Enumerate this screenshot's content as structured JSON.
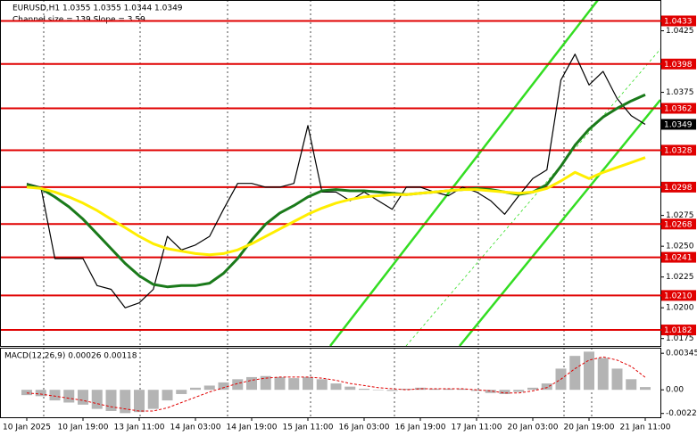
{
  "chart_data": [
    {
      "type": "line",
      "title": "EURUSD,H1 1.0355 1.0355 1.0344 1.0349",
      "subtitle": "Channel size = 139 Slope = 3.59",
      "categories": [
        "10 Jan 2025",
        null,
        null,
        null,
        "10 Jan 19:00",
        null,
        null,
        null,
        "13 Jan 11:00",
        null,
        null,
        null,
        "14 Jan 03:00",
        null,
        null,
        null,
        "14 Jan 19:00",
        null,
        null,
        null,
        "15 Jan 11:00",
        null,
        null,
        null,
        "16 Jan 03:00",
        null,
        null,
        null,
        "16 Jan 19:00",
        null,
        null,
        null,
        "17 Jan 11:00",
        null,
        null,
        null,
        "20 Jan 03:00",
        null,
        null,
        null,
        "20 Jan 19:00",
        null,
        null,
        null,
        "21 Jan 11:00"
      ],
      "series": [
        {
          "color": "#000000",
          "values": [
            1.0301,
            1.0298,
            1.024,
            1.024,
            1.024,
            1.0218,
            1.0215,
            1.02,
            1.0204,
            1.0215,
            1.0258,
            1.0247,
            1.0251,
            1.0258,
            1.028,
            1.0301,
            1.0301,
            1.0298,
            1.0298,
            1.0301,
            1.0348,
            1.0294,
            1.0294,
            1.0287,
            1.0294,
            1.0287,
            1.028,
            1.0298,
            1.0298,
            1.0294,
            1.0291,
            1.0298,
            1.0294,
            1.0287,
            1.0276,
            1.0291,
            1.0305,
            1.0312,
            1.0385,
            1.0406,
            1.0381,
            1.0392,
            1.037,
            1.0356,
            1.0349
          ]
        },
        {
          "color": "#1a7a1a",
          "values": [
            1.03,
            1.0297,
            1.029,
            1.0282,
            1.0272,
            1.026,
            1.0248,
            1.0236,
            1.0226,
            1.0219,
            1.0217,
            1.0218,
            1.0218,
            1.022,
            1.0228,
            1.024,
            1.0255,
            1.0268,
            1.0277,
            1.0283,
            1.029,
            1.0295,
            1.0296,
            1.0295,
            1.0295,
            1.0294,
            1.0293,
            1.0292,
            1.0293,
            1.0294,
            1.0295,
            1.0296,
            1.0297,
            1.0296,
            1.0294,
            1.0292,
            1.0294,
            1.03,
            1.0315,
            1.0332,
            1.0345,
            1.0355,
            1.0362,
            1.0368,
            1.0373
          ]
        },
        {
          "color": "#ffee00",
          "values": [
            1.0298,
            1.0297,
            1.0294,
            1.029,
            1.0285,
            1.0279,
            1.0272,
            1.0265,
            1.0258,
            1.0252,
            1.0248,
            1.0246,
            1.0244,
            1.0243,
            1.0244,
            1.0247,
            1.0252,
            1.0258,
            1.0264,
            1.027,
            1.0276,
            1.0281,
            1.0285,
            1.0288,
            1.029,
            1.0291,
            1.0292,
            1.0292,
            1.0293,
            1.0294,
            1.0295,
            1.0296,
            1.0296,
            1.0295,
            1.0294,
            1.0293,
            1.0294,
            1.0297,
            1.0303,
            1.031,
            1.0305,
            1.031,
            1.0314,
            1.0318,
            1.0322
          ]
        }
      ],
      "ylim": [
        1.0169,
        1.045
      ],
      "yticks": [
        1.0425,
        1.0375,
        1.0275,
        {
          "value": 1.025,
          "label": "1.0250"
        },
        1.0225,
        {
          "value": 1.02,
          "label": "1.0200"
        },
        1.0175
      ],
      "levels": [
        1.0433,
        1.0398,
        1.0362,
        1.0328,
        1.0298,
        1.0268,
        1.0241,
        {
          "value": 1.021,
          "label": "1.0210"
        },
        1.0182
      ],
      "level_color": "#e00000",
      "last_price": 1.0349
    },
    {
      "type": "bar",
      "title": "MACD(12,26,9) 0.00026 0.00118",
      "series": [
        {
          "color": "#b4b4b4",
          "values": [
            -0.0005,
            -0.0006,
            -0.001,
            -0.0012,
            -0.0014,
            -0.0018,
            -0.002,
            -0.0022,
            -0.0021,
            -0.0018,
            -0.001,
            -0.0004,
            0.0002,
            0.0004,
            0.0007,
            0.001,
            0.0012,
            0.0013,
            0.0012,
            0.0011,
            0.0012,
            0.001,
            0.0006,
            0.0003,
            0.0001,
            0,
            -0.0001,
            0.0001,
            0.0002,
            0.0001,
            0.0001,
            0.0001,
            -0.0001,
            -0.0003,
            -0.0004,
            -0.0002,
            0.0002,
            0.0006,
            0.002,
            0.0032,
            0.0036,
            0.003,
            0.002,
            0.001,
            0.00026
          ]
        },
        {
          "color": "#e00000",
          "values": [
            -0.0003,
            -0.0004,
            -0.0006,
            -0.0008,
            -0.001,
            -0.0013,
            -0.0016,
            -0.0018,
            -0.002,
            -0.002,
            -0.0017,
            -0.0012,
            -0.0007,
            -0.0002,
            0.0002,
            0.0006,
            0.0009,
            0.0011,
            0.0012,
            0.0012,
            0.0012,
            0.0011,
            0.0009,
            0.0006,
            0.0004,
            0.0002,
            0.0001,
            0,
            0.0001,
            0.0001,
            0.0001,
            0.0001,
            0,
            -0.0001,
            -0.0003,
            -0.0003,
            -0.0001,
            0.0002,
            0.001,
            0.002,
            0.0028,
            0.0031,
            0.0028,
            0.0022,
            0.00118
          ]
        }
      ],
      "ylim": [
        -0.00259,
        0.00397
      ],
      "yticks": [
        0.00345,
        {
          "value": 0,
          "label": "0.00"
        },
        -0.00223
      ]
    }
  ]
}
